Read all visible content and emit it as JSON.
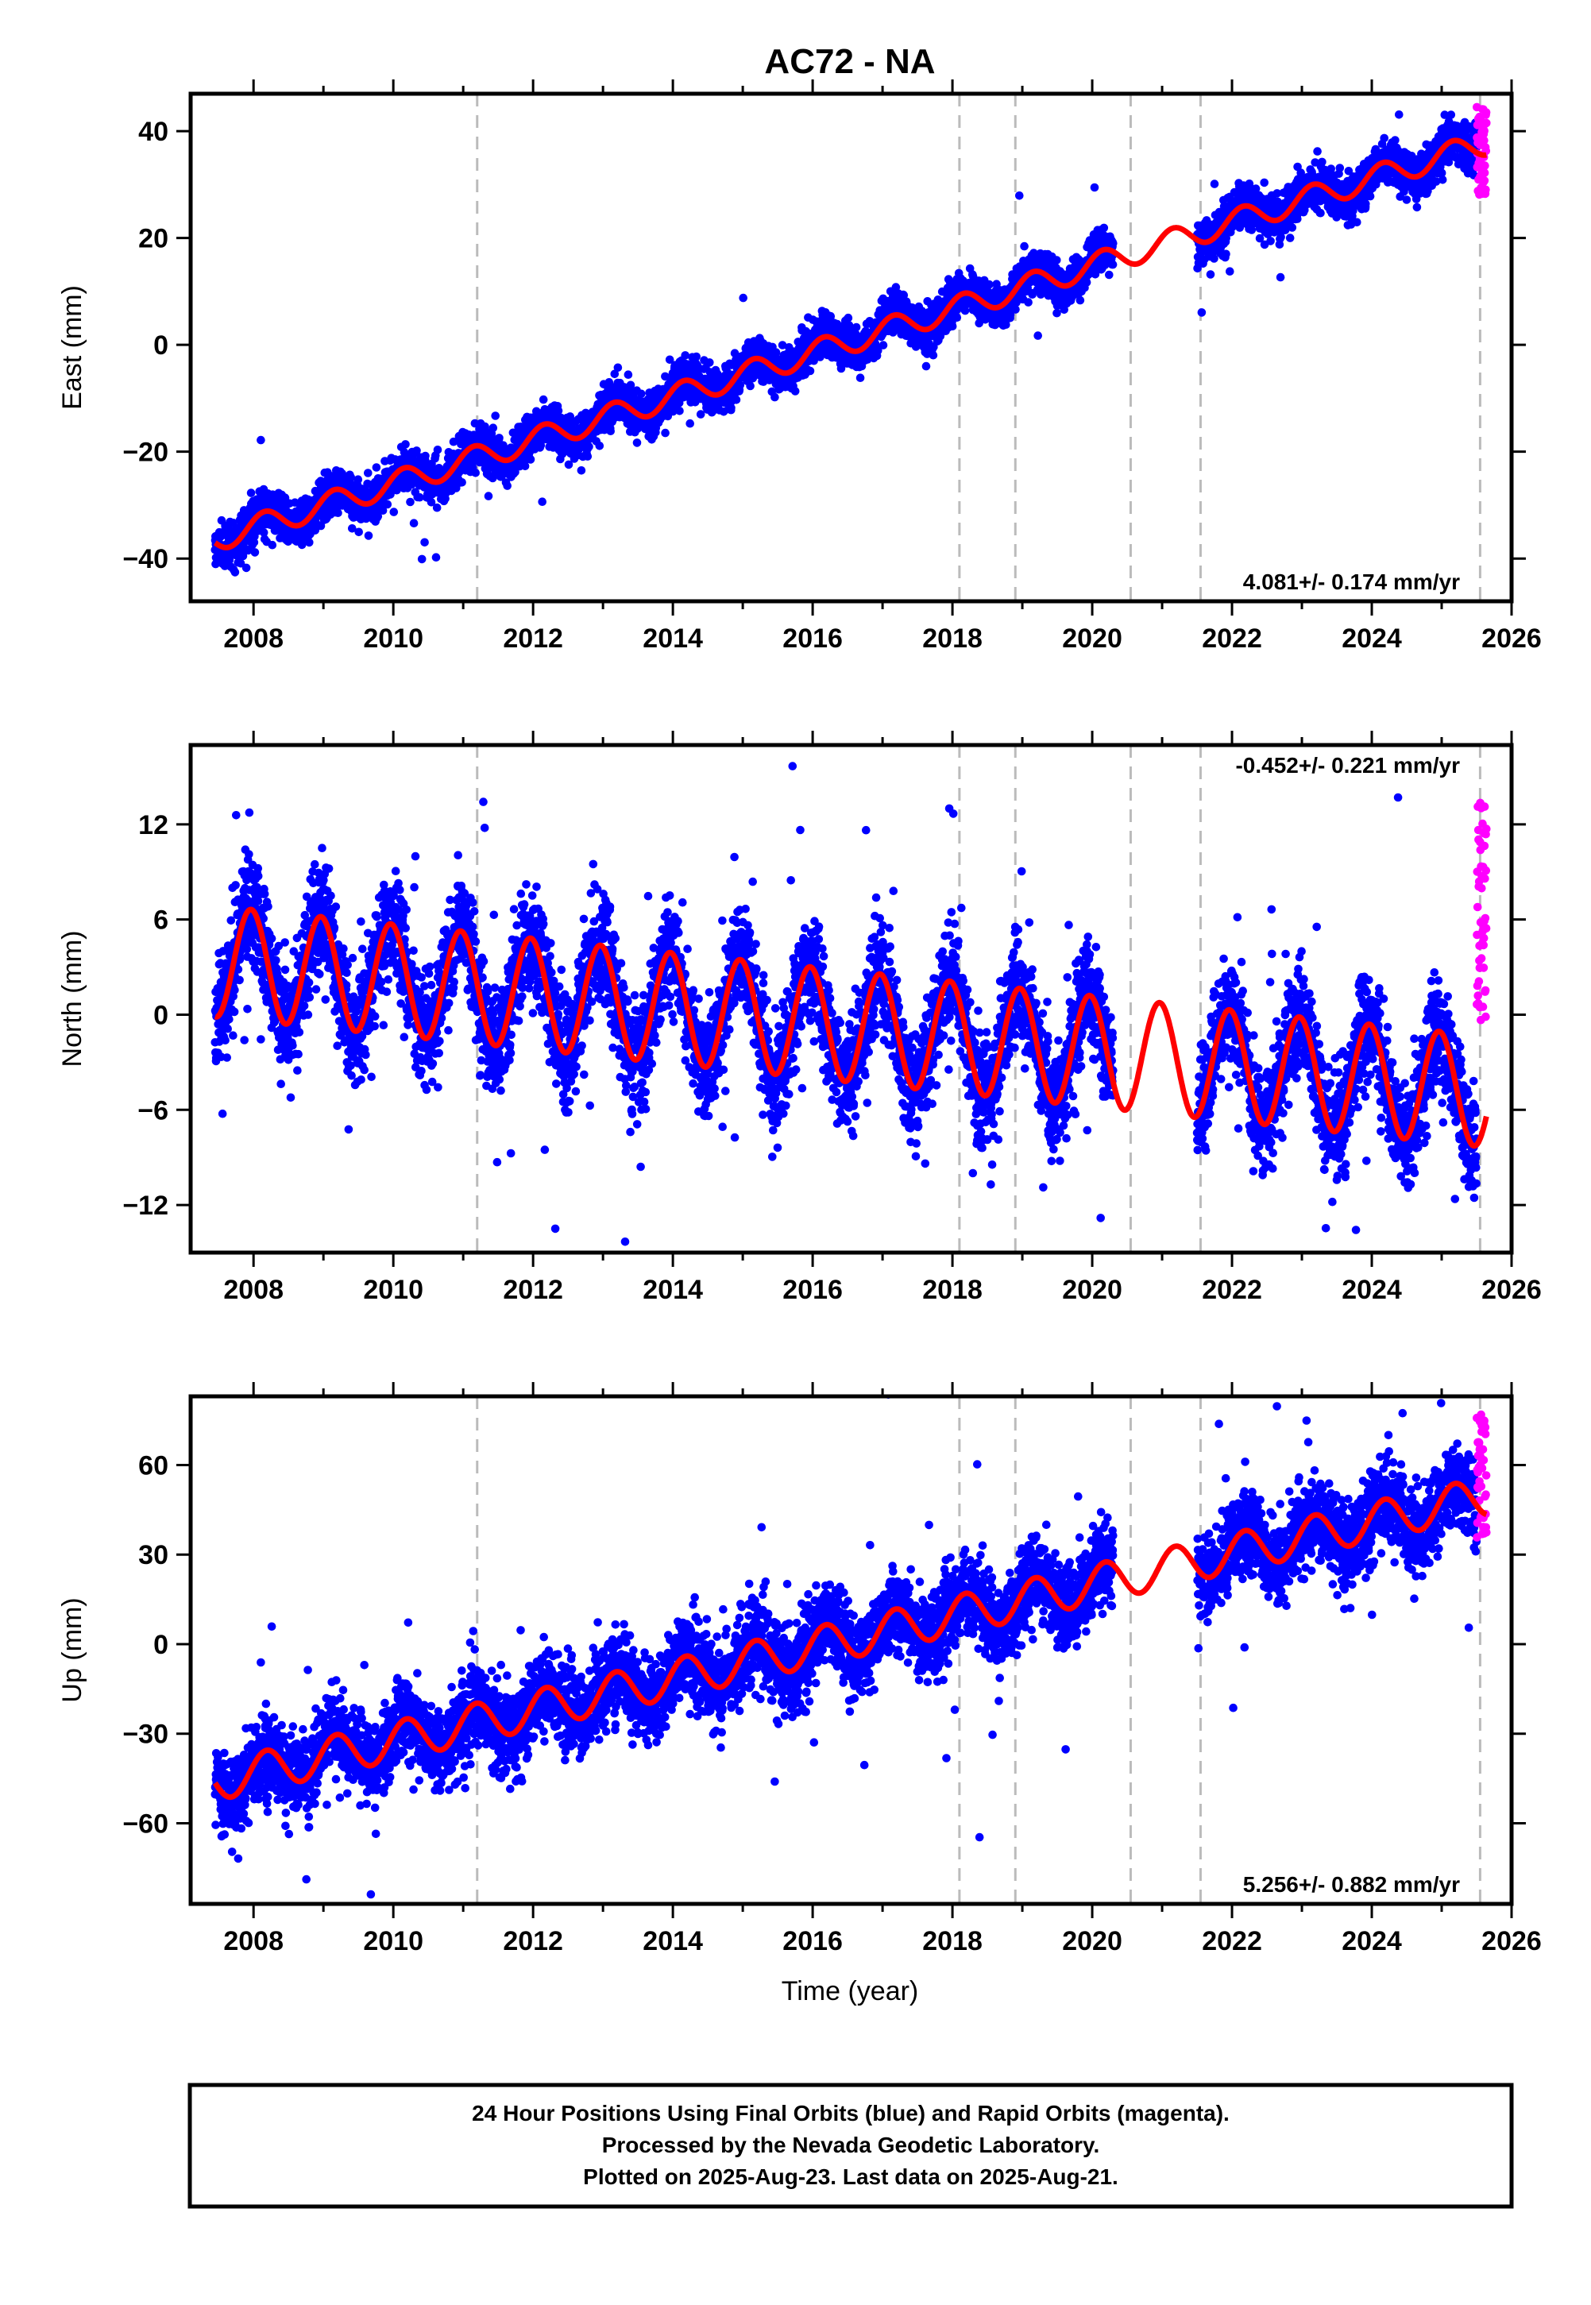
{
  "title": "AC72 - NA",
  "xlabel": "Time (year)",
  "footer": {
    "line1": "24 Hour Positions Using Final Orbits (blue) and Rapid Orbits (magenta).",
    "line2": "Processed by the Nevada Geodetic Laboratory.",
    "line3": "Plotted on 2025-Aug-23. Last data on 2025-Aug-21."
  },
  "colors": {
    "final": "#0000ff",
    "rapid": "#ff00ff",
    "model": "#ff0000",
    "events": "#bbbbbb"
  },
  "chart_data": [
    {
      "type": "scatter",
      "ylabel": "East (mm)",
      "rate_label": "4.081+/- 0.174 mm/yr",
      "xlim": [
        2007.1,
        2026.0
      ],
      "ylim": [
        -48,
        47
      ],
      "xticks": [
        2008,
        2010,
        2012,
        2014,
        2016,
        2018,
        2020,
        2022,
        2024,
        2026
      ],
      "yticks": [
        -40,
        -20,
        0,
        20,
        40
      ],
      "data_start": 2007.45,
      "data_gap": [
        2020.3,
        2021.5
      ],
      "final_end": 2025.5,
      "rapid_end": 2025.64,
      "trend_ref": 2016.0,
      "offset": -1.5,
      "rate": 4.081,
      "annual_amp": 2.3,
      "annual_phase": 0.6,
      "scatter": 2.0,
      "outlier_fraction": 0.01,
      "outlier_scale": 4,
      "rapid_range": [
        28,
        45
      ],
      "event_lines": [
        2011.2,
        2018.1,
        2018.9,
        2020.55,
        2021.55,
        2025.55
      ]
    },
    {
      "type": "scatter",
      "ylabel": "North (mm)",
      "rate_label": "-0.452+/- 0.221 mm/yr",
      "xlim": [
        2007.1,
        2026.0
      ],
      "ylim": [
        -15,
        17
      ],
      "xticks": [
        2008,
        2010,
        2012,
        2014,
        2016,
        2018,
        2020,
        2022,
        2024,
        2026
      ],
      "yticks": [
        -12,
        -6,
        0,
        6,
        12
      ],
      "data_start": 2007.45,
      "data_gap": [
        2020.3,
        2021.5
      ],
      "final_end": 2025.5,
      "rapid_end": 2025.64,
      "trend_ref": 2016.0,
      "offset": -0.5,
      "rate": -0.452,
      "annual_amp": 3.5,
      "annual_phase": 1.8,
      "scatter": 1.7,
      "outlier_fraction": 0.02,
      "outlier_scale": 4,
      "rapid_range": [
        -1.5,
        14
      ],
      "event_lines": [
        2011.2,
        2018.1,
        2018.9,
        2020.55,
        2021.55,
        2025.55
      ]
    },
    {
      "type": "scatter",
      "ylabel": "Up (mm)",
      "rate_label": "5.256+/- 0.882 mm/yr",
      "xlim": [
        2007.1,
        2026.0
      ],
      "ylim": [
        -87,
        83
      ],
      "xticks": [
        2008,
        2010,
        2012,
        2014,
        2016,
        2018,
        2020,
        2022,
        2024,
        2026
      ],
      "yticks": [
        -60,
        -30,
        0,
        30,
        60
      ],
      "data_start": 2007.45,
      "data_gap": [
        2020.3,
        2021.5
      ],
      "final_end": 2025.5,
      "rapid_end": 2025.64,
      "trend_ref": 2016.0,
      "offset": -1.0,
      "rate": 5.256,
      "annual_amp": 6.5,
      "annual_phase": 0.4,
      "scatter": 7.0,
      "outlier_fraction": 0.015,
      "outlier_scale": 4,
      "rapid_range": [
        35,
        77
      ],
      "event_lines": [
        2011.2,
        2018.1,
        2018.9,
        2020.55,
        2021.55,
        2025.55
      ]
    }
  ]
}
